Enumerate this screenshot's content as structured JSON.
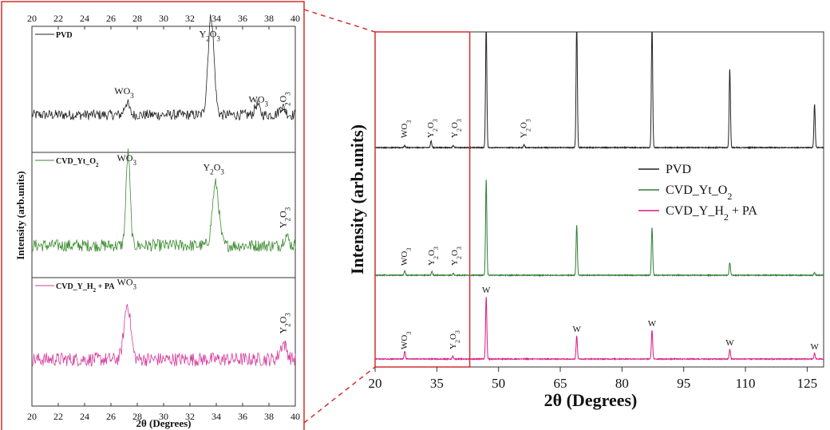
{
  "chart_data": [
    {
      "type": "line",
      "panel": "inset (zoomed 20-40 degrees)",
      "xlabel": "2θ (Degrees)",
      "ylabel": "Intensity (arb.units)",
      "xlim": [
        20,
        40
      ],
      "xticks": [
        20,
        22,
        24,
        26,
        28,
        30,
        32,
        34,
        36,
        38,
        40
      ],
      "top_xticks": [
        20,
        22,
        24,
        26,
        28,
        30,
        32,
        34,
        36,
        38,
        40
      ],
      "y_ticks_shown": false,
      "subpanels": [
        {
          "legend": "PVD",
          "legend_sub": "",
          "legend_tail": "",
          "color": "#222222",
          "baseline": 0.3,
          "noise": 0.05,
          "peaks": [
            {
              "x": 27.2,
              "height": 0.12,
              "width": 0.25
            },
            {
              "x": 33.6,
              "height": 0.95,
              "width": 0.32
            },
            {
              "x": 37.1,
              "height": 0.1,
              "width": 0.25
            },
            {
              "x": 39.0,
              "height": 0.08,
              "width": 0.3
            }
          ],
          "annotations": [
            {
              "x": 27.0,
              "y": 0.5,
              "text": "WO",
              "sub": "3",
              "rotate": 0
            },
            {
              "x": 33.5,
              "y": 1.05,
              "text": "Y",
              "sub": "2",
              "text2": "O",
              "sub2": "3",
              "rotate": 0
            },
            {
              "x": 37.2,
              "y": 0.42,
              "text": "WO",
              "sub": "3",
              "rotate": 0
            },
            {
              "x": 39.3,
              "y": 0.42,
              "text": "Y",
              "sub": "2",
              "text2": "O",
              "sub2": "3",
              "rotate": -90
            }
          ]
        },
        {
          "legend": "CVD_Yt_O",
          "legend_sub": "2",
          "legend_tail": "",
          "color": "#3a8a2e",
          "baseline": 0.25,
          "noise": 0.06,
          "peaks": [
            {
              "x": 27.3,
              "height": 0.9,
              "width": 0.22
            },
            {
              "x": 33.95,
              "height": 0.6,
              "width": 0.35
            },
            {
              "x": 39.3,
              "height": 0.1,
              "width": 0.25
            }
          ],
          "annotations": [
            {
              "x": 27.2,
              "y": 1.07,
              "text": "WO",
              "sub": "3",
              "rotate": 0
            },
            {
              "x": 33.8,
              "y": 0.98,
              "text": "Y",
              "sub": "2",
              "text2": "O",
              "sub2": "3",
              "rotate": 0
            },
            {
              "x": 39.3,
              "y": 0.52,
              "text": "Y",
              "sub": "2",
              "text2": "O",
              "sub2": "3",
              "rotate": -90
            }
          ]
        },
        {
          "legend": "CVD_Y_H",
          "legend_sub": "2",
          "legend_tail": " + PA",
          "color": "#d63a9c",
          "baseline": 0.38,
          "noise": 0.065,
          "peaks": [
            {
              "x": 27.25,
              "height": 0.52,
              "width": 0.35
            },
            {
              "x": 39.1,
              "height": 0.15,
              "width": 0.35
            }
          ],
          "annotations": [
            {
              "x": 27.2,
              "y": 1.08,
              "text": "WO",
              "sub": "3",
              "rotate": 0
            },
            {
              "x": 39.3,
              "y": 0.72,
              "text": "Y",
              "sub": "2",
              "text2": "O",
              "sub2": "3",
              "rotate": -90
            }
          ]
        }
      ]
    },
    {
      "type": "line",
      "panel": "main",
      "xlabel": "2θ (Degrees)",
      "ylabel": "Intensity (arb.units)",
      "xlim": [
        20,
        129
      ],
      "xticks": [
        20,
        35,
        50,
        65,
        80,
        95,
        110,
        125
      ],
      "y_ticks_shown": false,
      "zoom_region": [
        20,
        43
      ],
      "series": [
        {
          "name": "PVD",
          "color": "#222222",
          "peaks": [
            {
              "x": 27.2,
              "height": 0.02
            },
            {
              "x": 33.6,
              "height": 0.07
            },
            {
              "x": 39.0,
              "height": 0.02
            },
            {
              "x": 47.0,
              "height": 1.3
            },
            {
              "x": 56.2,
              "height": 0.03
            },
            {
              "x": 69.0,
              "height": 1.3
            },
            {
              "x": 87.3,
              "height": 1.3
            },
            {
              "x": 106.2,
              "height": 0.82
            },
            {
              "x": 126.8,
              "height": 0.45
            }
          ],
          "annotations": [
            {
              "x": 27.2,
              "text": "WO",
              "sub": "3"
            },
            {
              "x": 33.6,
              "text": "Y",
              "sub": "2",
              "text2": "O",
              "sub2": "3"
            },
            {
              "x": 39.4,
              "text": "Y",
              "sub": "2",
              "text2": "O",
              "sub2": "3"
            },
            {
              "x": 56.2,
              "text": "Y",
              "sub": "2",
              "text2": "O",
              "sub2": "3"
            }
          ]
        },
        {
          "name": "CVD_Yt_O",
          "name_sub": "2",
          "name_tail": "",
          "color": "#2e7d32",
          "peaks": [
            {
              "x": 27.2,
              "height": 0.05
            },
            {
              "x": 33.8,
              "height": 0.04
            },
            {
              "x": 39.0,
              "height": 0.02
            },
            {
              "x": 47.0,
              "height": 1.0
            },
            {
              "x": 69.0,
              "height": 0.52
            },
            {
              "x": 87.3,
              "height": 0.5
            },
            {
              "x": 106.2,
              "height": 0.13
            },
            {
              "x": 126.8,
              "height": 0.03
            }
          ],
          "annotations": [
            {
              "x": 27.2,
              "text": "WO",
              "sub": "3"
            },
            {
              "x": 33.8,
              "text": "Y",
              "sub": "2",
              "text2": "O",
              "sub2": "3"
            },
            {
              "x": 39.4,
              "text": "Y",
              "sub": "2",
              "text2": "O",
              "sub2": "3"
            }
          ]
        },
        {
          "name": "CVD_Y_H",
          "name_sub": "2",
          "name_tail": " + PA",
          "color": "#d81b84",
          "peaks": [
            {
              "x": 27.2,
              "height": 0.08
            },
            {
              "x": 38.9,
              "height": 0.03
            },
            {
              "x": 47.0,
              "height": 0.65
            },
            {
              "x": 69.0,
              "height": 0.24
            },
            {
              "x": 87.3,
              "height": 0.3
            },
            {
              "x": 106.2,
              "height": 0.1
            },
            {
              "x": 126.8,
              "height": 0.06
            }
          ],
          "annotations": [
            {
              "x": 27.2,
              "text": "WO",
              "sub": "3"
            },
            {
              "x": 39.0,
              "text": "Y",
              "sub": "2",
              "text2": "O",
              "sub2": "3"
            },
            {
              "x": 47.0,
              "text": "W"
            },
            {
              "x": 69.0,
              "text": "W"
            },
            {
              "x": 87.3,
              "text": "W"
            },
            {
              "x": 106.2,
              "text": "W"
            },
            {
              "x": 126.8,
              "text": "W"
            }
          ]
        }
      ]
    }
  ]
}
